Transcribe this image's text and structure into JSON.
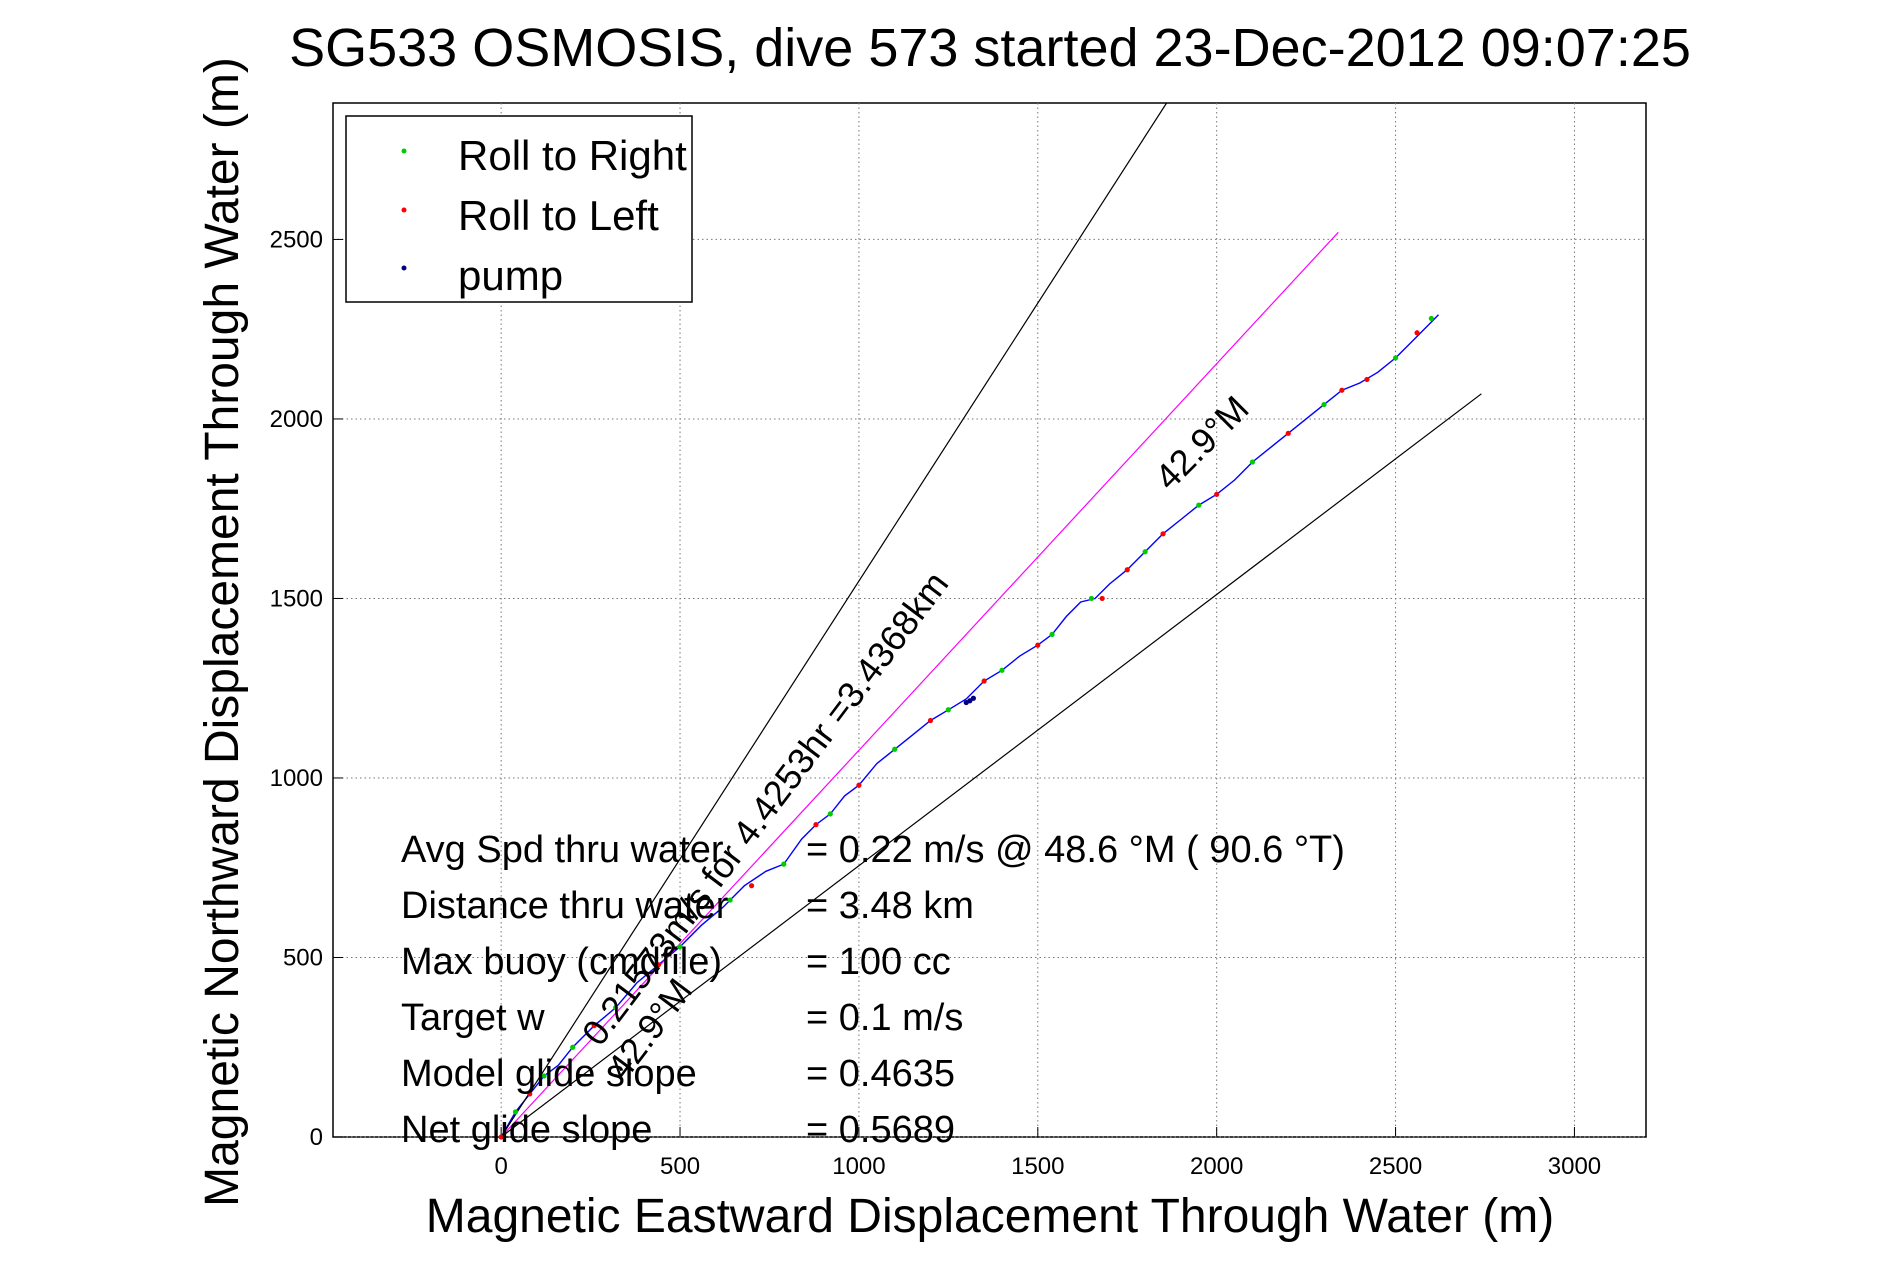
{
  "chart_data": {
    "type": "line",
    "title": "SG533 OSMOSIS, dive 573 started 23-Dec-2012 09:07:25",
    "xlabel": "Magnetic Eastward Displacement Through Water (m)",
    "ylabel": "Magnetic Northward Displacement Through Water (m)",
    "xlim": [
      -470,
      3200
    ],
    "ylim": [
      0,
      2880
    ],
    "x_ticks": [
      0,
      500,
      1000,
      1500,
      2000,
      2500,
      3000
    ],
    "y_ticks": [
      0,
      500,
      1000,
      1500,
      2000,
      2500
    ],
    "grid": true,
    "legend": {
      "position": "top-left",
      "entries": [
        {
          "label": "Roll to Right",
          "color": "#00cc00"
        },
        {
          "label": "Roll to Left",
          "color": "#ff0000"
        },
        {
          "label": "pump",
          "color": "#000080"
        }
      ]
    },
    "colors": {
      "track": "#0000ff",
      "heading_line": "#ff00ff",
      "bound_lines": "#000000"
    },
    "series": [
      {
        "role": "track",
        "color": "#0000ff",
        "x": [
          0,
          40,
          80,
          120,
          160,
          200,
          260,
          320,
          380,
          440,
          500,
          560,
          620,
          680,
          740,
          790,
          840,
          880,
          920,
          960,
          1000,
          1050,
          1100,
          1150,
          1200,
          1250,
          1300,
          1350,
          1400,
          1450,
          1500,
          1540,
          1580,
          1620,
          1660,
          1700,
          1750,
          1800,
          1850,
          1900,
          1950,
          2000,
          2050,
          2100,
          2150,
          2200,
          2250,
          2300,
          2350,
          2400,
          2450,
          2500,
          2550,
          2590,
          2620
        ],
        "y": [
          0,
          70,
          120,
          170,
          200,
          250,
          310,
          360,
          430,
          480,
          530,
          590,
          640,
          700,
          740,
          760,
          830,
          870,
          900,
          950,
          980,
          1040,
          1080,
          1120,
          1160,
          1190,
          1220,
          1270,
          1300,
          1340,
          1370,
          1400,
          1450,
          1490,
          1500,
          1540,
          1580,
          1630,
          1680,
          1720,
          1760,
          1790,
          1830,
          1880,
          1920,
          1960,
          2000,
          2040,
          2080,
          2100,
          2130,
          2170,
          2220,
          2260,
          2290
        ]
      },
      {
        "role": "heading",
        "color": "#ff00ff",
        "x": [
          0,
          2340
        ],
        "y": [
          0,
          2520
        ]
      },
      {
        "role": "upper-bound",
        "color": "#000000",
        "x": [
          0,
          1860
        ],
        "y": [
          0,
          2880
        ]
      },
      {
        "role": "lower-bound",
        "color": "#000000",
        "x": [
          0,
          2740
        ],
        "y": [
          0,
          2070
        ]
      }
    ],
    "markers": {
      "roll_right": {
        "color": "#00cc00",
        "x": [
          40,
          120,
          200,
          320,
          500,
          640,
          790,
          920,
          1100,
          1250,
          1400,
          1540,
          1650,
          1800,
          1950,
          2100,
          2300,
          2500,
          2600
        ],
        "y": [
          70,
          170,
          250,
          360,
          530,
          660,
          760,
          900,
          1080,
          1190,
          1300,
          1400,
          1500,
          1630,
          1760,
          1880,
          2040,
          2170,
          2280
        ]
      },
      "roll_left": {
        "color": "#ff0000",
        "x": [
          0,
          80,
          260,
          440,
          700,
          880,
          1000,
          1200,
          1350,
          1500,
          1680,
          1750,
          1850,
          2000,
          2200,
          2350,
          2420,
          2560
        ],
        "y": [
          0,
          120,
          310,
          480,
          700,
          870,
          980,
          1160,
          1270,
          1370,
          1500,
          1580,
          1680,
          1790,
          1960,
          2080,
          2110,
          2240
        ]
      },
      "pump": {
        "color": "#000080",
        "x": [
          1300,
          1310,
          1320
        ],
        "y": [
          1210,
          1215,
          1222
        ]
      }
    },
    "annotations": {
      "heading_label": "42.9°M",
      "distance_label": "0.21573m/s for 4.4253hr =3.4368km",
      "lower_heading_label": "42.9°M"
    },
    "stats": [
      {
        "label": "Avg Spd thru water",
        "value": "=  0.22 m/s @  48.6 °M ( 90.6 °T)"
      },
      {
        "label": "Distance thru water",
        "value": "=  3.48 km"
      },
      {
        "label": "Max buoy (cmdfile)",
        "value": "= 100 cc"
      },
      {
        "label": "Target w",
        "value": "= 0.1 m/s"
      },
      {
        "label": "Model glide slope",
        "value": "= 0.4635"
      },
      {
        "label": "Net glide slope",
        "value": "= 0.5689"
      }
    ]
  }
}
